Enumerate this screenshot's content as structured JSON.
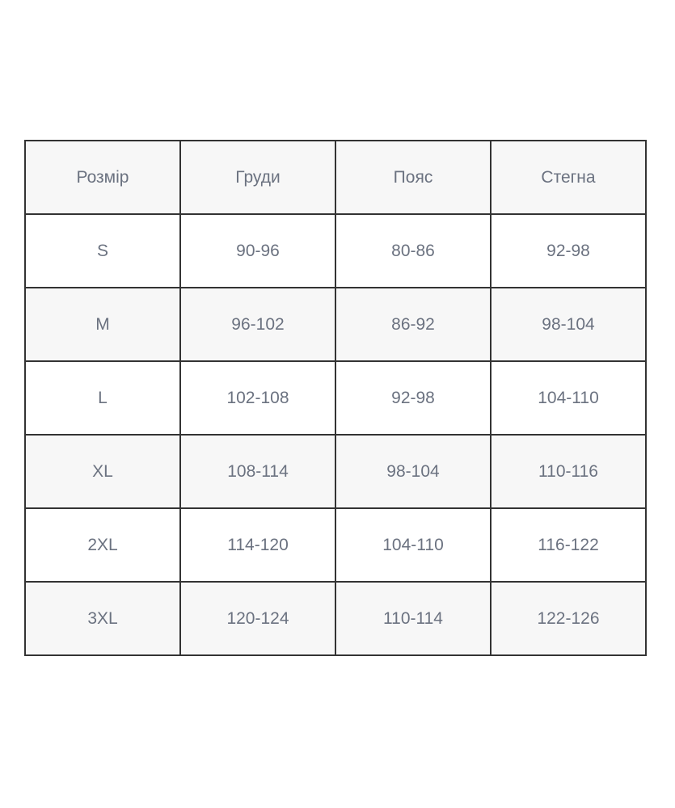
{
  "size_chart": {
    "headers": [
      "Розмір",
      "Груди",
      "Пояс",
      "Стегна"
    ],
    "rows": [
      [
        "S",
        "90-96",
        "80-86",
        "92-98"
      ],
      [
        "M",
        "96-102",
        "86-92",
        "98-104"
      ],
      [
        "L",
        "102-108",
        "92-98",
        "104-110"
      ],
      [
        "XL",
        "108-114",
        "98-104",
        "110-116"
      ],
      [
        "2XL",
        "114-120",
        "104-110",
        "116-122"
      ],
      [
        "3XL",
        "120-124",
        "110-114",
        "122-126"
      ]
    ]
  },
  "colors": {
    "border": "#333333",
    "stripe_background": "#f7f7f7",
    "row_background": "#ffffff",
    "text": "#6b7280",
    "page_background": "#ffffff"
  }
}
